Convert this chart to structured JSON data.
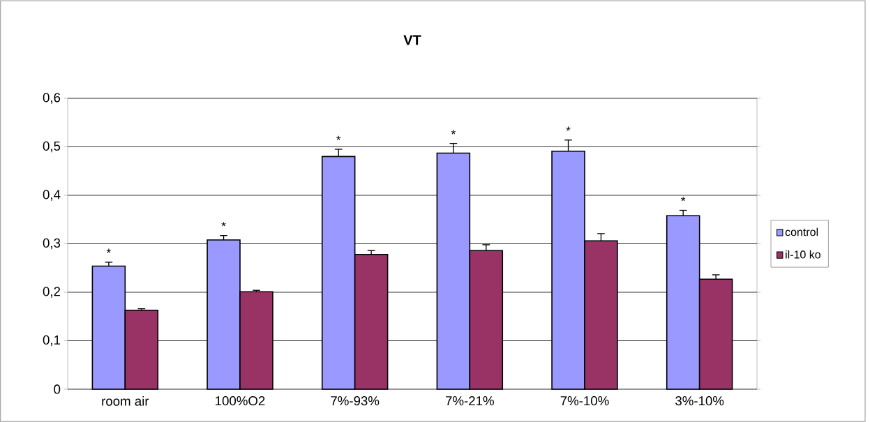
{
  "chart_data": {
    "type": "bar",
    "title": "VT",
    "categories": [
      "room air",
      "100%O2",
      "7%-93%",
      "7%-21%",
      "7%-10%",
      "3%-10%"
    ],
    "series": [
      {
        "name": "control",
        "color": "#9999ff",
        "values": [
          0.254,
          0.308,
          0.48,
          0.487,
          0.491,
          0.358
        ],
        "errors": [
          0.008,
          0.009,
          0.015,
          0.02,
          0.023,
          0.011
        ]
      },
      {
        "name": "il-10 ko",
        "color": "#993366",
        "values": [
          0.163,
          0.201,
          0.278,
          0.286,
          0.306,
          0.227
        ],
        "errors": [
          0.003,
          0.003,
          0.008,
          0.012,
          0.015,
          0.009
        ]
      }
    ],
    "ylim": [
      0,
      0.6
    ],
    "yticks": [
      0,
      {
        "value": 0.1,
        "label": "0,1"
      },
      {
        "value": 0.2,
        "label": "0,2"
      },
      {
        "value": 0.3,
        "label": "0,3"
      },
      {
        "value": 0.4,
        "label": "0,4"
      },
      {
        "value": 0.5,
        "label": "0,5"
      },
      {
        "value": 0.6,
        "label": "0,6"
      }
    ],
    "grid": "y",
    "legend": "right",
    "annotations": [
      "*",
      "*",
      "*",
      "*",
      "*",
      "*"
    ]
  }
}
